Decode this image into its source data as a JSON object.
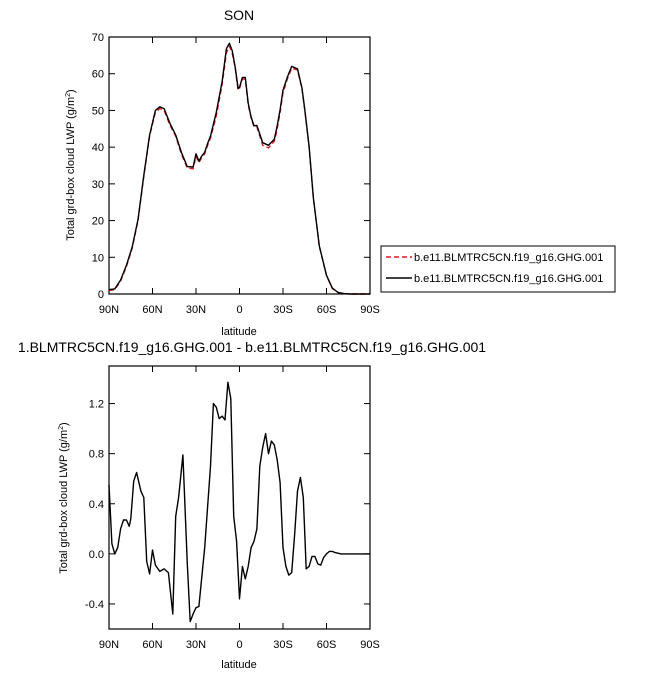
{
  "chart_data": [
    {
      "type": "line",
      "title": "SON",
      "xlabel": "latitude",
      "ylabel": "Total grd-box cloud LWP (g/m",
      "ylabel_sup": "2",
      "ylabel_close": ")",
      "x_reversed": true,
      "xlim": [
        -90,
        90
      ],
      "ylim": [
        0,
        70
      ],
      "xticks": [
        {
          "value": 90,
          "label": "90N"
        },
        {
          "value": 60,
          "label": "60N"
        },
        {
          "value": 30,
          "label": "30N"
        },
        {
          "value": 0,
          "label": "0"
        },
        {
          "value": -30,
          "label": "30S"
        },
        {
          "value": -60,
          "label": "60S"
        },
        {
          "value": -90,
          "label": "90S"
        }
      ],
      "yticks": [
        {
          "value": 0,
          "label": "0"
        },
        {
          "value": 10,
          "label": "10"
        },
        {
          "value": 20,
          "label": "20"
        },
        {
          "value": 30,
          "label": "30"
        },
        {
          "value": 40,
          "label": "40"
        },
        {
          "value": 50,
          "label": "50"
        },
        {
          "value": 60,
          "label": "60"
        },
        {
          "value": 70,
          "label": "70"
        }
      ],
      "legend": {
        "placement": "right"
      },
      "series": [
        {
          "name": "b.e11.BLMTRC5CN.f19_g16.GHG.001",
          "color": "#e8161b",
          "dash": "dashed",
          "x": [
            90,
            86,
            82,
            78,
            74,
            70,
            66,
            62,
            58,
            55,
            52,
            48,
            44,
            40,
            36,
            32,
            30,
            28,
            26,
            24,
            22,
            20,
            16,
            12,
            9,
            7,
            5,
            3,
            1,
            0,
            -2,
            -4,
            -6,
            -8,
            -10,
            -12,
            -16,
            -20,
            -24,
            -26,
            -28,
            -30,
            -33,
            -36,
            -40,
            -43,
            -45,
            -48,
            -51,
            -55,
            -60,
            -64,
            -68,
            -72,
            -76,
            -80,
            -85,
            -90
          ],
          "y": [
            0.9,
            1.2,
            3.5,
            7.5,
            12.5,
            20,
            32,
            43,
            49.5,
            50.5,
            50,
            46,
            43,
            38,
            34.3,
            34.1,
            37.5,
            35.8,
            37.2,
            38.2,
            40.5,
            42.5,
            48.5,
            57,
            65.7,
            67.5,
            65.5,
            61.5,
            55.5,
            56,
            58.6,
            58.5,
            51.5,
            48,
            45.5,
            45.5,
            40.5,
            39.8,
            41.6,
            45,
            49.5,
            54.8,
            58.6,
            61.5,
            61,
            56,
            50,
            40,
            26,
            13,
            5,
            1.5,
            0.4,
            0.1,
            0,
            0,
            0,
            0
          ]
        },
        {
          "name": "b.e11.BLMTRC5CN.f19_g16.GHG.001",
          "color": "#000000",
          "dash": "solid",
          "x": [
            90,
            86,
            82,
            78,
            74,
            70,
            66,
            62,
            58,
            55,
            52,
            48,
            44,
            40,
            36,
            32,
            30,
            28,
            26,
            24,
            22,
            20,
            16,
            12,
            9,
            7,
            5,
            3,
            1,
            0,
            -2,
            -4,
            -6,
            -8,
            -10,
            -12,
            -16,
            -20,
            -24,
            -26,
            -28,
            -30,
            -33,
            -36,
            -40,
            -43,
            -45,
            -48,
            -51,
            -55,
            -60,
            -64,
            -68,
            -72,
            -76,
            -80,
            -85,
            -90
          ],
          "y": [
            1.2,
            1.4,
            3.8,
            7.8,
            12.8,
            20.3,
            32.3,
            43.3,
            50,
            51,
            50.5,
            46.5,
            43.3,
            38.5,
            34.7,
            34.6,
            38.2,
            36.2,
            37.6,
            38.6,
            41,
            43,
            49.5,
            57.8,
            66.8,
            68.3,
            66.2,
            61.8,
            56,
            56.3,
            59,
            59,
            52,
            48.2,
            45.8,
            45.9,
            41.2,
            40.5,
            42.1,
            45.8,
            50.2,
            55.5,
            59.1,
            62,
            61.3,
            56.2,
            50.2,
            40.2,
            26.1,
            13.1,
            5.1,
            1.6,
            0.4,
            0.1,
            0,
            0,
            0,
            0
          ]
        }
      ]
    },
    {
      "type": "line",
      "title": "1.BLMTRC5CN.f19_g16.GHG.001 - b.e11.BLMTRC5CN.f19_g16.GHG.001",
      "xlabel": "latitude",
      "ylabel": "Total grd-box cloud LWP (g/m",
      "ylabel_sup": "2",
      "ylabel_close": ")",
      "x_reversed": true,
      "xlim": [
        -90,
        90
      ],
      "ylim": [
        -0.6,
        1.5
      ],
      "xticks": [
        {
          "value": 90,
          "label": "90N"
        },
        {
          "value": 60,
          "label": "60N"
        },
        {
          "value": 30,
          "label": "30N"
        },
        {
          "value": 0,
          "label": "0"
        },
        {
          "value": -30,
          "label": "30S"
        },
        {
          "value": -60,
          "label": "60S"
        },
        {
          "value": -90,
          "label": "90S"
        }
      ],
      "yticks": [
        {
          "value": -0.4,
          "label": "-0.4"
        },
        {
          "value": 0,
          "label": "0.0"
        },
        {
          "value": 0.4,
          "label": "0.4"
        },
        {
          "value": 0.8,
          "label": "0.8"
        },
        {
          "value": 1.2,
          "label": "1.2"
        }
      ],
      "series": [
        {
          "color": "#000000",
          "dash": "solid",
          "x": [
            90,
            88,
            86,
            84,
            82,
            80,
            78,
            76,
            75,
            73,
            71,
            68,
            66,
            64,
            62,
            60,
            58,
            55,
            52,
            49,
            46,
            44,
            42,
            39,
            36,
            34,
            32,
            30,
            28,
            24,
            20,
            18,
            16,
            14,
            12,
            10,
            8,
            6,
            4,
            2,
            0,
            -2,
            -4,
            -6,
            -8,
            -10,
            -12,
            -14,
            -16,
            -18,
            -20,
            -22,
            -24,
            -26,
            -28,
            -30,
            -32,
            -34,
            -36,
            -38,
            -40,
            -42,
            -44,
            -46,
            -48,
            -50,
            -52,
            -54,
            -56,
            -58,
            -60,
            -62,
            -64,
            -66,
            -70,
            -74,
            -78,
            -82,
            -90
          ],
          "y": [
            0.55,
            0.08,
            0,
            0.05,
            0.2,
            0.27,
            0.27,
            0.22,
            0.28,
            0.58,
            0.65,
            0.5,
            0.45,
            -0.06,
            -0.16,
            0.03,
            -0.09,
            -0.14,
            -0.12,
            -0.15,
            -0.48,
            0.3,
            0.45,
            0.79,
            -0.08,
            -0.54,
            -0.48,
            -0.43,
            -0.42,
            0.05,
            0.7,
            1.2,
            1.17,
            1.08,
            1.1,
            1.07,
            1.37,
            1.24,
            0.3,
            0.1,
            -0.36,
            -0.1,
            -0.2,
            -0.1,
            0.05,
            0.1,
            0.2,
            0.7,
            0.85,
            0.96,
            0.8,
            0.9,
            0.87,
            0.75,
            0.57,
            0.05,
            -0.1,
            -0.17,
            -0.15,
            0.15,
            0.5,
            0.61,
            0.45,
            -0.12,
            -0.1,
            -0.02,
            -0.02,
            -0.08,
            -0.09,
            -0.03,
            0.0,
            0.02,
            0.02,
            0.01,
            0.0,
            0.0,
            0.0,
            0.0,
            0.0
          ]
        }
      ]
    }
  ]
}
